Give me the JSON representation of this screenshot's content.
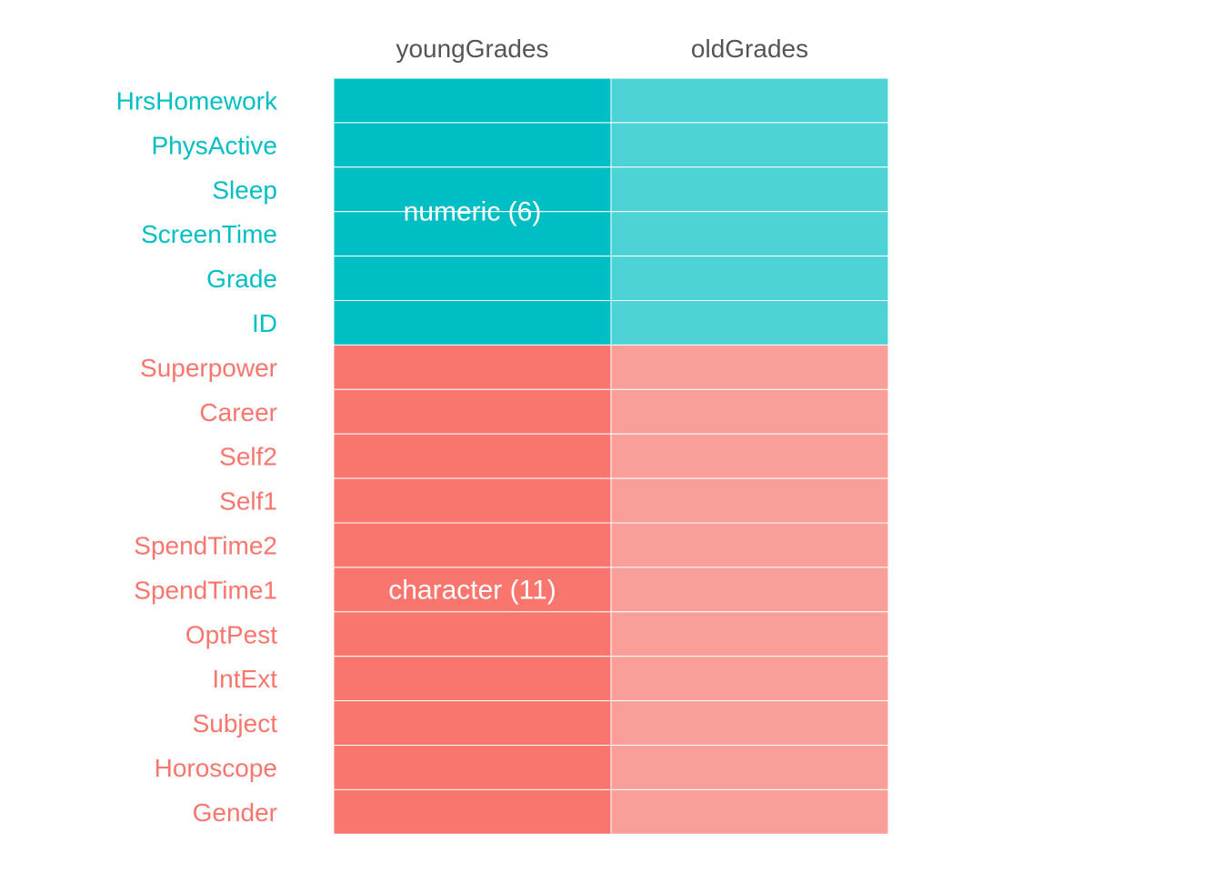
{
  "chart_data": {
    "type": "heatmap",
    "columns": [
      "youngGrades",
      "oldGrades"
    ],
    "rows": [
      {
        "label": "HrsHomework",
        "type": "numeric"
      },
      {
        "label": "PhysActive",
        "type": "numeric"
      },
      {
        "label": "Sleep",
        "type": "numeric"
      },
      {
        "label": "ScreenTime",
        "type": "numeric"
      },
      {
        "label": "Grade",
        "type": "numeric"
      },
      {
        "label": "ID",
        "type": "numeric"
      },
      {
        "label": "Superpower",
        "type": "character"
      },
      {
        "label": "Career",
        "type": "character"
      },
      {
        "label": "Self2",
        "type": "character"
      },
      {
        "label": "Self1",
        "type": "character"
      },
      {
        "label": "SpendTime2",
        "type": "character"
      },
      {
        "label": "SpendTime1",
        "type": "character"
      },
      {
        "label": "OptPest",
        "type": "character"
      },
      {
        "label": "IntExt",
        "type": "character"
      },
      {
        "label": "Subject",
        "type": "character"
      },
      {
        "label": "Horoscope",
        "type": "character"
      },
      {
        "label": "Gender",
        "type": "character"
      }
    ],
    "groups": [
      {
        "type": "numeric",
        "label": "numeric (6)",
        "count": 6
      },
      {
        "type": "character",
        "label": "character (11)",
        "count": 11
      }
    ],
    "colors": {
      "numeric": {
        "primary": "#00BFC4",
        "secondary": "#4DD3D6"
      },
      "character": {
        "primary": "#F8766D",
        "secondary": "#F99E98"
      }
    },
    "legend": "none",
    "grid": false
  }
}
